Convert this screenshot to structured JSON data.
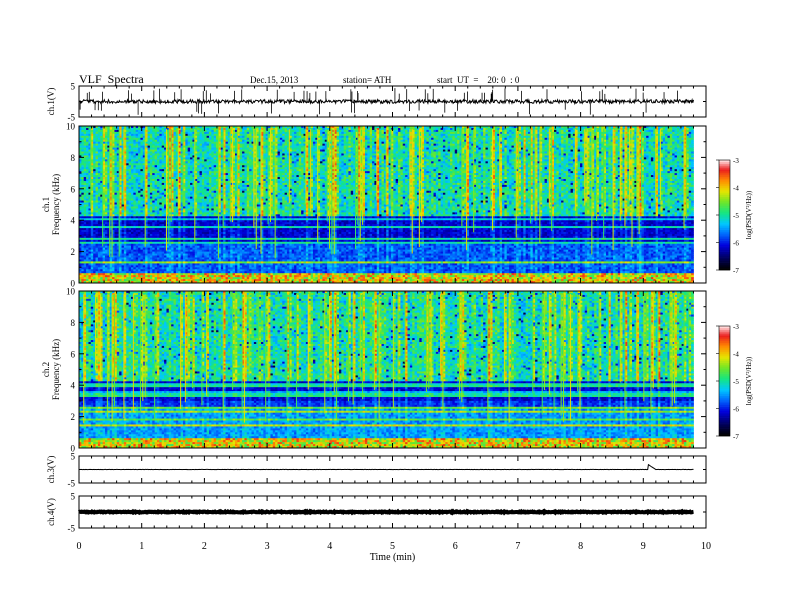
{
  "header": {
    "title": "VLF  Spectra",
    "date": "Dec.15, 2013",
    "station": "station= ATH",
    "start": "start  UT  =    20: 0  : 0"
  },
  "chart_data": [
    {
      "type": "line",
      "panel": "ch1-voltage",
      "ylabel": "ch.1(V)",
      "ylim": [
        -5,
        5
      ],
      "yticks": [
        "5",
        "-5"
      ],
      "xlim": [
        0,
        10
      ],
      "x_end": 9.8,
      "baseline": 0,
      "noise_amplitude": 0.6,
      "spike_rate": "high",
      "line_color": "#000000"
    },
    {
      "type": "heatmap",
      "panel": "ch1-spectrogram",
      "ylabel": "ch.1\nFrequency (kHz)",
      "ylabel_lines": [
        "ch.1",
        "Frequency  (kHz)"
      ],
      "ylim": [
        0,
        10
      ],
      "yticks": [
        "0",
        "2",
        "4",
        "6",
        "8",
        "10"
      ],
      "xlim": [
        0,
        10
      ],
      "x_end": 9.8,
      "colorbar": {
        "label": "log(PSD(V²/Hz))",
        "range": [
          -7,
          -3
        ],
        "ticks": [
          "-7",
          "-6",
          "-5",
          "-4",
          "-3"
        ]
      }
    },
    {
      "type": "heatmap",
      "panel": "ch2-spectrogram",
      "ylabel": "ch.2\nFrequency (kHz)",
      "ylabel_lines": [
        "ch.2",
        "Frequency  (kHz)"
      ],
      "ylim": [
        0,
        10
      ],
      "yticks": [
        "0",
        "2",
        "4",
        "6",
        "8",
        "10"
      ],
      "xlim": [
        0,
        10
      ],
      "x_end": 9.8,
      "colorbar": {
        "label": "log(PSD(V²/Hz))",
        "range": [
          -7,
          -3
        ],
        "ticks": [
          "-7",
          "-6",
          "-5",
          "-4",
          "-3"
        ]
      }
    },
    {
      "type": "line",
      "panel": "ch3-voltage",
      "ylabel": "ch.3(V)",
      "ylim": [
        -5,
        5
      ],
      "yticks": [
        "5",
        "-5"
      ],
      "xlim": [
        0,
        10
      ],
      "x_end": 9.8,
      "baseline": 0,
      "noise_amplitude": 0.05,
      "events": [
        {
          "x": 9.08,
          "y": 1.8
        }
      ],
      "line_color": "#000000"
    },
    {
      "type": "line",
      "panel": "ch4-voltage",
      "ylabel": "ch.4(V)",
      "ylim": [
        -5,
        5
      ],
      "yticks": [
        "5",
        "-5"
      ],
      "xlim": [
        0,
        10
      ],
      "x_end": 9.8,
      "baseline": 0,
      "noise_amplitude": 0.15,
      "line_color": "#000000"
    }
  ],
  "xaxis": {
    "label": "Time  (min)",
    "range": [
      0,
      10
    ],
    "ticks": [
      "0",
      "1",
      "2",
      "3",
      "4",
      "5",
      "6",
      "7",
      "8",
      "9",
      "10"
    ]
  }
}
